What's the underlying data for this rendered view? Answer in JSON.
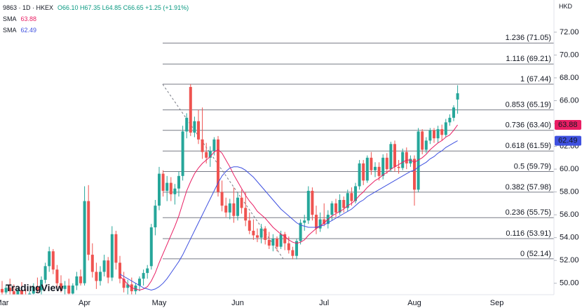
{
  "header": {
    "symbol": "9863 · 1D · HKEX",
    "ohlc": "O66.10 H67.35 L64.85 C66.65 +1.25 (+1.91%)",
    "currency": "HKD",
    "watermark": "TradingView"
  },
  "chart_data": {
    "type": "candlestick",
    "up_color": "#26a69a",
    "down_color": "#ef5350",
    "ylim": [
      49,
      74.82
    ],
    "yticks": [
      {
        "value": 50,
        "label": "50.00"
      },
      {
        "value": 52,
        "label": "52.00"
      },
      {
        "value": 54,
        "label": "54.00"
      },
      {
        "value": 56,
        "label": "56.00"
      },
      {
        "value": 58,
        "label": "58.00"
      },
      {
        "value": 60,
        "label": "60.00"
      },
      {
        "value": 62,
        "label": "62.00"
      },
      {
        "value": 64,
        "label": "64.00"
      },
      {
        "value": 66,
        "label": "66.00"
      },
      {
        "value": 68,
        "label": "68.00"
      },
      {
        "value": 70,
        "label": "70.00"
      },
      {
        "value": 72,
        "label": "72.00"
      }
    ],
    "categories": [
      "Mar",
      null,
      null,
      null,
      null,
      null,
      null,
      null,
      null,
      null,
      null,
      null,
      null,
      null,
      null,
      null,
      null,
      null,
      null,
      null,
      null,
      "Apr",
      null,
      null,
      null,
      null,
      null,
      null,
      null,
      null,
      null,
      null,
      null,
      null,
      null,
      null,
      null,
      null,
      null,
      null,
      "May",
      null,
      null,
      null,
      null,
      null,
      null,
      null,
      null,
      null,
      null,
      null,
      null,
      null,
      null,
      null,
      null,
      null,
      null,
      null,
      "Jun",
      null,
      null,
      null,
      null,
      null,
      null,
      null,
      null,
      null,
      null,
      null,
      null,
      null,
      null,
      null,
      null,
      null,
      null,
      null,
      null,
      null,
      "Jul",
      null,
      null,
      null,
      null,
      null,
      null,
      null,
      null,
      null,
      null,
      null,
      null,
      null,
      null,
      null,
      null,
      null,
      null,
      null,
      null,
      null,
      null,
      "Aug",
      null,
      null,
      null,
      null,
      null,
      null,
      null,
      null,
      null,
      null,
      null,
      null,
      null,
      null,
      null,
      null,
      null,
      null,
      null,
      null,
      "Sep"
    ],
    "ohlc": [
      [
        49.5,
        50.2,
        48.8,
        49.2
      ],
      [
        49.2,
        49.8,
        48.5,
        49.6
      ],
      [
        49.6,
        50.4,
        49.0,
        49.3
      ],
      [
        49.3,
        49.9,
        48.6,
        48.9
      ],
      [
        48.9,
        49.6,
        48.2,
        49.4
      ],
      [
        49.4,
        50.1,
        48.9,
        49.0
      ],
      [
        49.0,
        49.5,
        48.3,
        48.6
      ],
      [
        48.6,
        49.3,
        48.1,
        49.1
      ],
      [
        49.1,
        50.0,
        48.8,
        49.7
      ],
      [
        49.7,
        50.5,
        49.2,
        49.4
      ],
      [
        49.4,
        50.6,
        49.0,
        50.3
      ],
      [
        50.3,
        51.8,
        50.0,
        51.5
      ],
      [
        51.5,
        53.2,
        51.0,
        52.8
      ],
      [
        52.8,
        53.0,
        50.8,
        51.2
      ],
      [
        51.2,
        51.6,
        49.6,
        50.0
      ],
      [
        50.0,
        50.7,
        49.2,
        49.5
      ],
      [
        49.5,
        50.2,
        48.7,
        49.8
      ],
      [
        49.8,
        50.4,
        48.9,
        49.1
      ],
      [
        49.1,
        50.0,
        48.6,
        49.8
      ],
      [
        49.8,
        51.0,
        49.4,
        50.6
      ],
      [
        50.6,
        51.2,
        49.8,
        50.0
      ],
      [
        50.0,
        58.5,
        49.8,
        57.2
      ],
      [
        57.2,
        58.6,
        52.0,
        52.5
      ],
      [
        52.5,
        53.5,
        50.5,
        51.0
      ],
      [
        51.0,
        51.8,
        49.5,
        50.2
      ],
      [
        50.2,
        51.5,
        49.8,
        51.0
      ],
      [
        51.0,
        52.5,
        50.6,
        52.0
      ],
      [
        52.0,
        52.3,
        50.0,
        50.5
      ],
      [
        50.5,
        55.0,
        50.2,
        54.3
      ],
      [
        54.3,
        54.6,
        51.2,
        51.8
      ],
      [
        51.8,
        52.4,
        50.0,
        50.4
      ],
      [
        50.4,
        51.0,
        49.2,
        49.6
      ],
      [
        49.6,
        50.3,
        48.8,
        49.9
      ],
      [
        49.9,
        50.5,
        49.0,
        49.3
      ],
      [
        49.3,
        50.0,
        48.6,
        49.8
      ],
      [
        49.8,
        50.6,
        49.3,
        50.4
      ],
      [
        50.4,
        51.2,
        49.8,
        50.9
      ],
      [
        50.9,
        51.6,
        50.4,
        51.3
      ],
      [
        51.5,
        55.2,
        51.2,
        54.9
      ],
      [
        54.9,
        57.3,
        54.2,
        56.8
      ],
      [
        56.8,
        60.2,
        56.4,
        59.6
      ],
      [
        59.6,
        59.9,
        57.6,
        58.1
      ],
      [
        58.1,
        59.4,
        57.2,
        58.8
      ],
      [
        58.8,
        59.3,
        57.2,
        57.8
      ],
      [
        57.8,
        58.7,
        56.9,
        58.3
      ],
      [
        58.3,
        59.8,
        57.6,
        59.4
      ],
      [
        59.4,
        63.8,
        59.0,
        63.3
      ],
      [
        63.3,
        64.9,
        62.7,
        64.5
      ],
      [
        67.2,
        67.44,
        62.9,
        63.2
      ],
      [
        63.2,
        64.6,
        62.8,
        64.2
      ],
      [
        64.2,
        65.2,
        62.2,
        62.6
      ],
      [
        62.6,
        65.4,
        60.9,
        61.5
      ],
      [
        61.5,
        62.3,
        60.5,
        61.0
      ],
      [
        61.0,
        62.0,
        60.2,
        61.6
      ],
      [
        61.6,
        62.8,
        61.2,
        62.6
      ],
      [
        62.6,
        62.9,
        57.6,
        58.0
      ],
      [
        58.0,
        59.0,
        56.3,
        56.8
      ],
      [
        56.8,
        57.5,
        55.8,
        56.2
      ],
      [
        56.2,
        57.4,
        55.6,
        57.0
      ],
      [
        57.0,
        58.4,
        55.3,
        55.9
      ],
      [
        55.9,
        57.9,
        55.5,
        57.5
      ],
      [
        57.5,
        58.2,
        56.1,
        56.6
      ],
      [
        56.6,
        58.0,
        55.0,
        55.5
      ],
      [
        55.5,
        56.2,
        54.3,
        54.6
      ],
      [
        54.6,
        55.6,
        53.8,
        54.2
      ],
      [
        54.2,
        54.8,
        53.6,
        54.0
      ],
      [
        54.0,
        55.2,
        53.5,
        54.8
      ],
      [
        54.8,
        55.0,
        53.4,
        53.8
      ],
      [
        53.8,
        54.5,
        53.0,
        53.3
      ],
      [
        53.3,
        54.3,
        52.8,
        53.9
      ],
      [
        53.9,
        54.1,
        52.8,
        53.2
      ],
      [
        53.2,
        54.6,
        53.0,
        54.3
      ],
      [
        54.3,
        54.5,
        52.9,
        53.5
      ],
      [
        53.5,
        54.1,
        52.6,
        52.9
      ],
      [
        52.9,
        53.2,
        52.1,
        52.4
      ],
      [
        52.4,
        53.9,
        52.1,
        53.7
      ],
      [
        53.7,
        55.6,
        53.4,
        55.3
      ],
      [
        55.3,
        56.0,
        54.6,
        55.5
      ],
      [
        55.5,
        58.5,
        55.2,
        58.1
      ],
      [
        58.1,
        58.4,
        55.5,
        56.0
      ],
      [
        56.0,
        56.8,
        54.3,
        54.8
      ],
      [
        54.8,
        56.2,
        54.5,
        55.6
      ],
      [
        55.6,
        57.0,
        55.0,
        55.2
      ],
      [
        55.2,
        56.4,
        54.8,
        56.0
      ],
      [
        56.0,
        57.2,
        55.5,
        57.0
      ],
      [
        57.0,
        57.4,
        55.8,
        56.2
      ],
      [
        56.2,
        57.8,
        56.0,
        57.3
      ],
      [
        57.3,
        57.6,
        56.2,
        56.6
      ],
      [
        56.6,
        58.2,
        56.3,
        57.9
      ],
      [
        57.9,
        58.4,
        56.8,
        57.2
      ],
      [
        57.2,
        58.8,
        57.0,
        58.5
      ],
      [
        58.5,
        60.8,
        58.2,
        60.5
      ],
      [
        60.5,
        60.8,
        58.6,
        59.0
      ],
      [
        59.0,
        61.2,
        58.8,
        61.0
      ],
      [
        61.0,
        61.5,
        59.5,
        59.9
      ],
      [
        59.9,
        60.6,
        59.3,
        60.2
      ],
      [
        60.2,
        60.6,
        59.0,
        59.4
      ],
      [
        59.4,
        61.3,
        59.1,
        61.0
      ],
      [
        61.0,
        61.4,
        59.6,
        60.0
      ],
      [
        60.0,
        62.4,
        59.8,
        62.2
      ],
      [
        62.2,
        62.5,
        59.8,
        60.2
      ],
      [
        60.2,
        60.8,
        59.6,
        60.1
      ],
      [
        60.1,
        61.8,
        59.9,
        61.5
      ],
      [
        61.5,
        61.9,
        60.0,
        60.5
      ],
      [
        60.5,
        61.2,
        60.2,
        60.9
      ],
      [
        60.9,
        61.2,
        56.8,
        58.2
      ],
      [
        58.2,
        63.6,
        58.0,
        63.3
      ],
      [
        63.3,
        63.5,
        61.3,
        61.7
      ],
      [
        61.7,
        62.8,
        61.4,
        62.5
      ],
      [
        62.5,
        63.6,
        62.2,
        63.4
      ],
      [
        63.4,
        63.6,
        62.3,
        62.7
      ],
      [
        62.7,
        63.8,
        62.3,
        63.5
      ],
      [
        63.5,
        63.9,
        62.5,
        63.0
      ],
      [
        63.0,
        64.4,
        62.8,
        64.1
      ],
      [
        64.1,
        64.8,
        63.8,
        64.5
      ],
      [
        64.5,
        65.6,
        64.2,
        65.4
      ],
      [
        66.1,
        67.35,
        64.85,
        66.65
      ],
      null,
      null,
      null,
      null,
      null,
      null,
      null,
      null,
      null,
      null
    ],
    "indicators": [
      {
        "name": "SMA",
        "color": "#e91e63",
        "values": [
          null,
          null,
          null,
          null,
          null,
          null,
          null,
          null,
          null,
          null,
          null,
          null,
          null,
          null,
          null,
          null,
          null,
          null,
          null,
          null,
          null,
          null,
          null,
          null,
          null,
          null,
          null,
          null,
          null,
          null,
          50.6,
          50.3,
          49.9,
          49.6,
          49.5,
          49.4,
          49.5,
          49.7,
          50.2,
          50.9,
          51.8,
          52.6,
          53.4,
          54.2,
          55.0,
          55.9,
          57.0,
          58.1,
          58.9,
          59.6,
          60.1,
          60.5,
          60.8,
          61.1,
          61.5,
          61.7,
          61.4,
          60.8,
          60.2,
          59.5,
          58.9,
          58.3,
          57.7,
          57.2,
          56.8,
          56.3,
          56.0,
          55.7,
          55.3,
          54.9,
          54.6,
          54.3,
          54.1,
          53.8,
          53.6,
          53.5,
          53.6,
          53.8,
          54.2,
          54.5,
          54.8,
          55.0,
          55.3,
          55.6,
          55.9,
          56.1,
          56.3,
          56.5,
          56.8,
          57.0,
          57.3,
          57.7,
          58.0,
          58.4,
          58.7,
          59.0,
          59.2,
          59.5,
          59.7,
          60.0,
          60.2,
          60.4,
          60.6,
          60.8,
          60.8,
          60.6,
          60.8,
          61.0,
          61.3,
          61.7,
          62.0,
          62.3,
          62.5,
          62.8,
          63.0,
          63.4,
          63.88,
          null,
          null,
          null,
          null,
          null,
          null,
          null,
          null,
          null,
          null
        ]
      },
      {
        "name": "SMA",
        "color": "#3f51e0",
        "values": [
          null,
          null,
          null,
          null,
          null,
          null,
          null,
          null,
          null,
          null,
          null,
          null,
          null,
          null,
          null,
          null,
          null,
          null,
          null,
          null,
          null,
          null,
          null,
          null,
          null,
          null,
          null,
          null,
          null,
          null,
          50.8,
          50.6,
          50.4,
          50.2,
          50.0,
          49.8,
          49.6,
          49.5,
          49.4,
          49.5,
          49.7,
          50.0,
          50.4,
          50.9,
          51.4,
          51.9,
          52.5,
          53.2,
          53.9,
          54.6,
          55.3,
          56.0,
          56.7,
          57.4,
          58.1,
          58.8,
          59.4,
          59.8,
          60.1,
          60.2,
          60.2,
          60.1,
          59.9,
          59.6,
          59.3,
          58.9,
          58.5,
          58.1,
          57.7,
          57.3,
          56.9,
          56.5,
          56.2,
          55.9,
          55.6,
          55.3,
          55.1,
          55.0,
          54.9,
          54.9,
          54.9,
          55.0,
          55.1,
          55.3,
          55.5,
          55.7,
          55.9,
          56.1,
          56.3,
          56.5,
          56.8,
          57.1,
          57.3,
          57.6,
          57.8,
          58.0,
          58.2,
          58.4,
          58.6,
          58.8,
          59.0,
          59.2,
          59.4,
          59.6,
          59.8,
          59.9,
          60.2,
          60.4,
          60.6,
          60.9,
          61.1,
          61.4,
          61.6,
          61.9,
          62.1,
          62.3,
          62.49,
          null,
          null,
          null,
          null,
          null,
          null,
          null,
          null,
          null,
          null
        ]
      }
    ],
    "fib_levels": [
      {
        "value": 71.05,
        "label": "1.236 (71.05)"
      },
      {
        "value": 69.21,
        "label": "1.116 (69.21)"
      },
      {
        "value": 67.44,
        "label": "1 (67.44)"
      },
      {
        "value": 65.19,
        "label": "0.853 (65.19)"
      },
      {
        "value": 63.4,
        "label": "0.736 (63.40)"
      },
      {
        "value": 61.59,
        "label": "0.618 (61.59)"
      },
      {
        "value": 59.79,
        "label": "0.5 (59.79)"
      },
      {
        "value": 57.98,
        "label": "0.382 (57.98)"
      },
      {
        "value": 55.75,
        "label": "0.236 (55.75)"
      },
      {
        "value": 53.91,
        "label": "0.116 (53.91)"
      },
      {
        "value": 52.14,
        "label": "0 (52.14)"
      }
    ]
  }
}
